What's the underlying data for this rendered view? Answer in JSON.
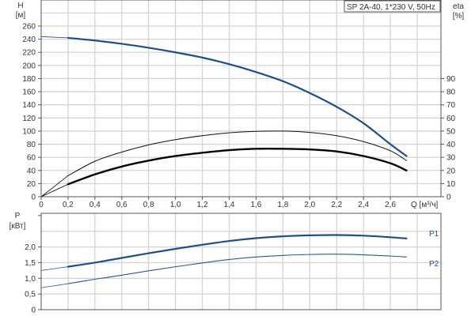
{
  "chart_data": [
    {
      "type": "line",
      "title": "SP 2A-40, 1*230 V, 50Hz",
      "xlabel": "Q [м³/ч]",
      "ylabel": "H",
      "ylabel_unit": "[м]",
      "y2label": "eta",
      "y2label_unit": "[%]",
      "xlim": [
        0,
        2.8
      ],
      "ylim": [
        0,
        260
      ],
      "y2lim": [
        0,
        130
      ],
      "grid": true,
      "x_ticks": [
        "0",
        "0,2",
        "0,4",
        "0,6",
        "0,8",
        "1,0",
        "1,2",
        "1,4",
        "1,6",
        "1,8",
        "2,0",
        "2,2",
        "2,4",
        "2,6"
      ],
      "y_ticks": [
        "0",
        "20",
        "40",
        "60",
        "80",
        "100",
        "120",
        "140",
        "160",
        "180",
        "200",
        "220",
        "240",
        "260"
      ],
      "y2_ticks": [
        "0",
        "10",
        "20",
        "30",
        "40",
        "50",
        "60",
        "70",
        "80",
        "90"
      ],
      "series": [
        {
          "axis": "left",
          "color": "#1f4e8c",
          "width": 2.2,
          "x": [
            0,
            0.2,
            0.4,
            0.6,
            0.8,
            1.0,
            1.2,
            1.4,
            1.6,
            1.8,
            2.0,
            2.2,
            2.4,
            2.6,
            2.72
          ],
          "y": [
            244,
            242,
            238,
            233,
            227,
            220,
            212,
            202,
            190,
            176,
            158,
            137,
            112,
            80,
            62
          ]
        },
        {
          "axis": "right",
          "color": "#111111",
          "width": 1,
          "x": [
            0,
            0.2,
            0.4,
            0.6,
            0.8,
            1.0,
            1.2,
            1.4,
            1.6,
            1.8,
            2.0,
            2.2,
            2.4,
            2.6,
            2.72
          ],
          "y": [
            0,
            16,
            27,
            34,
            39.5,
            43.5,
            46.5,
            48.7,
            49.8,
            50,
            49,
            46.5,
            42,
            35,
            27.5
          ]
        },
        {
          "axis": "right",
          "color": "#000000",
          "width": 2.4,
          "x": [
            0,
            0.2,
            0.4,
            0.6,
            0.8,
            1.0,
            1.2,
            1.4,
            1.6,
            1.8,
            2.0,
            2.2,
            2.4,
            2.6,
            2.72
          ],
          "y": [
            0,
            9.5,
            17,
            23,
            27.5,
            31,
            33.5,
            35.5,
            36.5,
            36.5,
            36,
            34.5,
            31,
            25.5,
            20
          ]
        }
      ]
    },
    {
      "type": "line",
      "ylabel": "P",
      "ylabel_unit": "[кВт]",
      "xlim": [
        0,
        2.8
      ],
      "ylim": [
        0,
        3.0
      ],
      "grid": true,
      "y_ticks": [
        "0",
        "0,5",
        "1,0",
        "1,5",
        "2,0"
      ],
      "series": [
        {
          "name": "P1",
          "color": "#1f4e8c",
          "width": 2.2,
          "x": [
            0,
            0.2,
            0.4,
            0.6,
            0.8,
            1.0,
            1.2,
            1.4,
            1.6,
            1.8,
            2.0,
            2.2,
            2.4,
            2.6,
            2.72
          ],
          "y": [
            1.25,
            1.37,
            1.5,
            1.65,
            1.8,
            1.94,
            2.07,
            2.19,
            2.28,
            2.34,
            2.37,
            2.38,
            2.36,
            2.31,
            2.27
          ]
        },
        {
          "name": "P2",
          "color": "#2a5a95",
          "width": 1.1,
          "x": [
            0,
            0.2,
            0.4,
            0.6,
            0.8,
            1.0,
            1.2,
            1.4,
            1.6,
            1.8,
            2.0,
            2.2,
            2.4,
            2.6,
            2.72
          ],
          "y": [
            0.7,
            0.83,
            0.97,
            1.1,
            1.24,
            1.37,
            1.49,
            1.6,
            1.68,
            1.73,
            1.76,
            1.77,
            1.75,
            1.71,
            1.68
          ]
        }
      ]
    }
  ]
}
